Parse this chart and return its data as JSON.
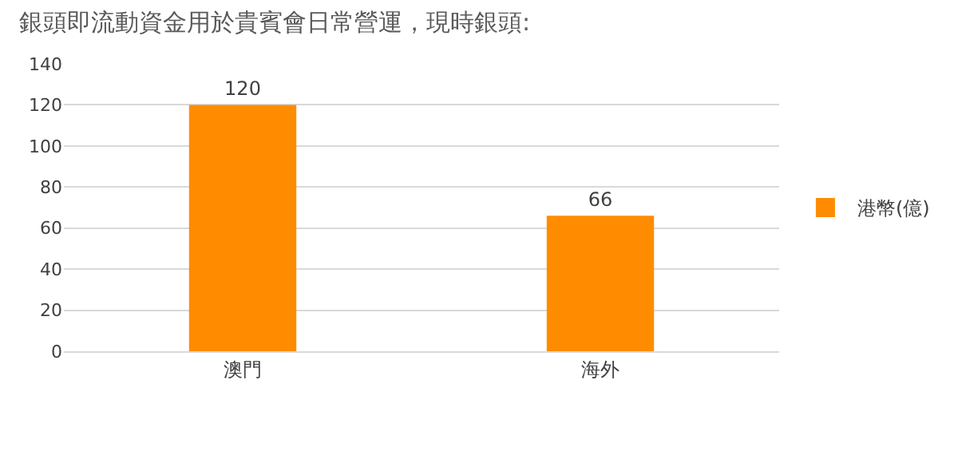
{
  "chart_data": {
    "type": "bar",
    "title": "銀頭即流動資金用於貴賓會日常營運，現時銀頭:",
    "categories": [
      "澳門",
      "海外"
    ],
    "series": [
      {
        "name": "港幣(億)",
        "color": "#ff8c00",
        "values": [
          120,
          66
        ]
      }
    ],
    "ylim": [
      0,
      140
    ],
    "yticks": [
      0,
      20,
      40,
      60,
      80,
      100,
      120,
      140
    ],
    "grid": "y",
    "legend": "right",
    "data_labels": true
  }
}
